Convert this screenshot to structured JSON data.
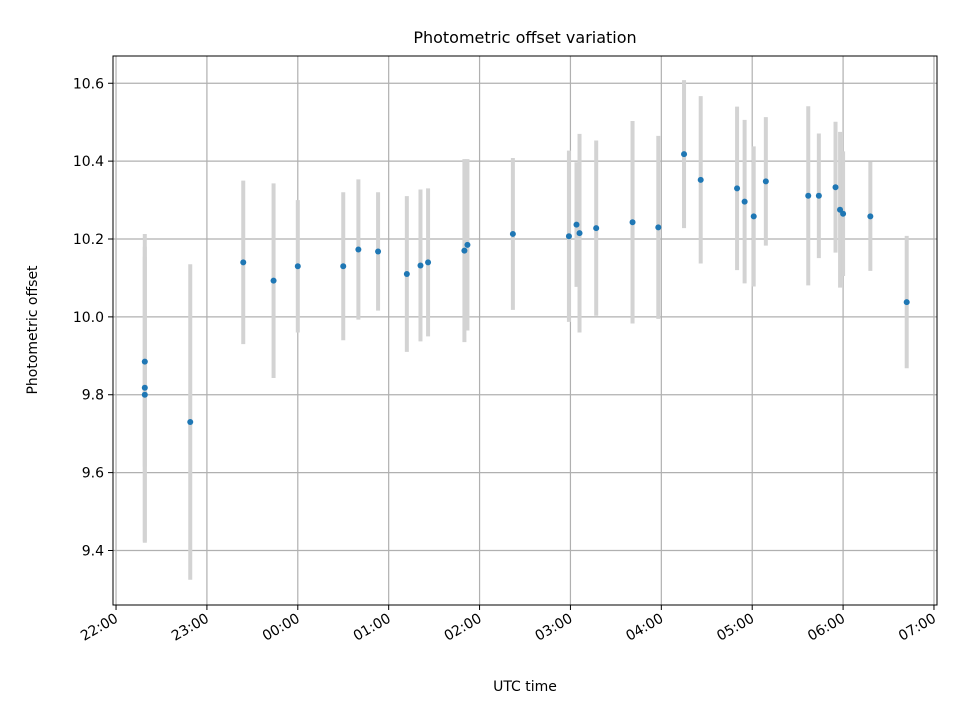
{
  "chart_data": {
    "type": "scatter",
    "title": "Photometric offset variation",
    "xlabel": "UTC time",
    "ylabel": "Photometric offset",
    "grid": true,
    "xlim": [
      "21:58",
      "31:02"
    ],
    "ylim": [
      9.26,
      10.67
    ],
    "x_ticks": [
      "22:00",
      "23:00",
      "00:00",
      "01:00",
      "02:00",
      "03:00",
      "04:00",
      "05:00",
      "06:00",
      "07:00"
    ],
    "y_ticks": [
      "9.4",
      "9.6",
      "9.8",
      "10.0",
      "10.2",
      "10.4",
      "10.6"
    ],
    "colors": {
      "points": "#1f77b4",
      "error_bars": "#d3d3d3",
      "grid": "#b0b0b0"
    },
    "points": [
      {
        "x": "22:19",
        "y": 9.885,
        "err": 0.27
      },
      {
        "x": "22:19",
        "y": 9.818,
        "err": 0.395
      },
      {
        "x": "22:19",
        "y": 9.8,
        "err": 0.38
      },
      {
        "x": "22:49",
        "y": 9.73,
        "err": 0.405
      },
      {
        "x": "23:24",
        "y": 10.14,
        "err": 0.21
      },
      {
        "x": "23:44",
        "y": 10.093,
        "err": 0.25
      },
      {
        "x": "24:00",
        "y": 10.13,
        "err": 0.17
      },
      {
        "x": "24:30",
        "y": 10.13,
        "err": 0.19
      },
      {
        "x": "24:40",
        "y": 10.173,
        "err": 0.18
      },
      {
        "x": "24:53",
        "y": 10.168,
        "err": 0.152
      },
      {
        "x": "25:12",
        "y": 10.11,
        "err": 0.2
      },
      {
        "x": "25:21",
        "y": 10.132,
        "err": 0.195
      },
      {
        "x": "25:26",
        "y": 10.14,
        "err": 0.19
      },
      {
        "x": "25:50",
        "y": 10.17,
        "err": 0.235
      },
      {
        "x": "25:52",
        "y": 10.185,
        "err": 0.22
      },
      {
        "x": "26:22",
        "y": 10.213,
        "err": 0.195
      },
      {
        "x": "26:59",
        "y": 10.207,
        "err": 0.22
      },
      {
        "x": "27:04",
        "y": 10.237,
        "err": 0.16
      },
      {
        "x": "27:06",
        "y": 10.215,
        "err": 0.255
      },
      {
        "x": "27:17",
        "y": 10.228,
        "err": 0.225
      },
      {
        "x": "27:41",
        "y": 10.243,
        "err": 0.26
      },
      {
        "x": "27:58",
        "y": 10.23,
        "err": 0.235
      },
      {
        "x": "28:15",
        "y": 10.418,
        "err": 0.19
      },
      {
        "x": "28:26",
        "y": 10.352,
        "err": 0.215
      },
      {
        "x": "28:50",
        "y": 10.33,
        "err": 0.21
      },
      {
        "x": "28:55",
        "y": 10.296,
        "err": 0.21
      },
      {
        "x": "29:01",
        "y": 10.258,
        "err": 0.18
      },
      {
        "x": "29:09",
        "y": 10.348,
        "err": 0.165
      },
      {
        "x": "29:37",
        "y": 10.311,
        "err": 0.23
      },
      {
        "x": "29:44",
        "y": 10.311,
        "err": 0.16
      },
      {
        "x": "29:55",
        "y": 10.333,
        "err": 0.168
      },
      {
        "x": "29:58",
        "y": 10.275,
        "err": 0.2
      },
      {
        "x": "30:00",
        "y": 10.265,
        "err": 0.16
      },
      {
        "x": "30:18",
        "y": 10.258,
        "err": 0.14
      },
      {
        "x": "30:42",
        "y": 10.038,
        "err": 0.17
      }
    ]
  }
}
